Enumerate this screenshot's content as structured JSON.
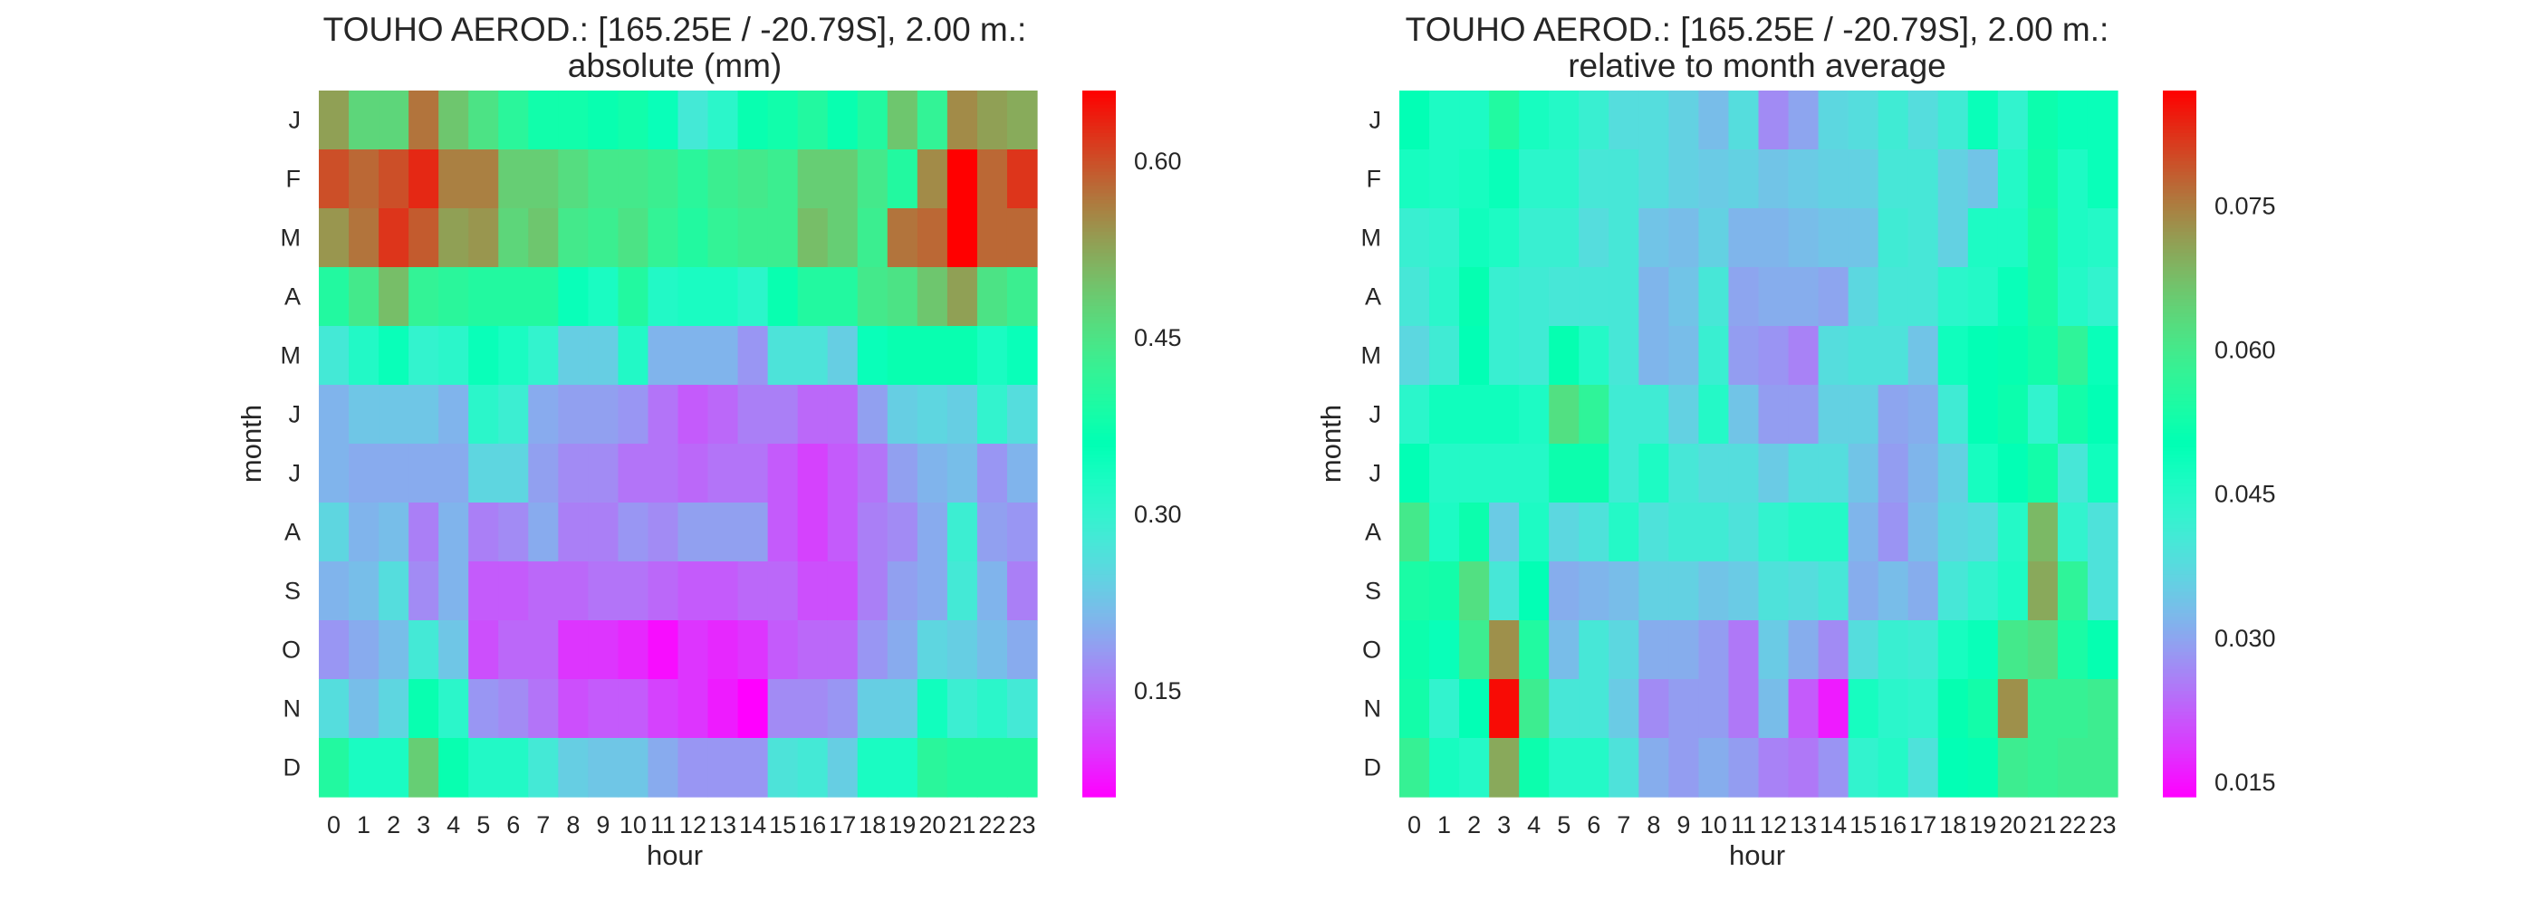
{
  "chart_data": [
    {
      "type": "heatmap",
      "title": "TOUHO AEROD.: [165.25E / -20.79S], 2.00 m.:",
      "subtitle": "absolute (mm)",
      "xlabel": "hour",
      "ylabel": "month",
      "x": [
        "0",
        "1",
        "2",
        "3",
        "4",
        "5",
        "6",
        "7",
        "8",
        "9",
        "10",
        "11",
        "12",
        "13",
        "14",
        "15",
        "16",
        "17",
        "18",
        "19",
        "20",
        "21",
        "22",
        "23"
      ],
      "y": [
        "J",
        "F",
        "M",
        "A",
        "M",
        "J",
        "J",
        "A",
        "S",
        "O",
        "N",
        "D"
      ],
      "colorbar": {
        "min": 0.06,
        "max": 0.66,
        "ticks": [
          0.15,
          0.3,
          0.45,
          0.6
        ],
        "tick_labels": [
          "0.15",
          "0.30",
          "0.45",
          "0.60"
        ],
        "colormap": "rainbow"
      },
      "grid": false,
      "values": [
        [
          0.53,
          0.47,
          0.47,
          0.57,
          0.49,
          0.45,
          0.41,
          0.38,
          0.38,
          0.37,
          0.38,
          0.35,
          0.28,
          0.31,
          0.37,
          0.38,
          0.4,
          0.37,
          0.4,
          0.49,
          0.42,
          0.55,
          0.53,
          0.52
        ],
        [
          0.6,
          0.58,
          0.6,
          0.63,
          0.56,
          0.56,
          0.48,
          0.48,
          0.46,
          0.44,
          0.44,
          0.43,
          0.41,
          0.43,
          0.44,
          0.43,
          0.48,
          0.48,
          0.44,
          0.4,
          0.55,
          0.66,
          0.58,
          0.62
        ],
        [
          0.54,
          0.57,
          0.62,
          0.59,
          0.53,
          0.54,
          0.47,
          0.49,
          0.44,
          0.43,
          0.45,
          0.42,
          0.4,
          0.42,
          0.43,
          0.43,
          0.5,
          0.48,
          0.43,
          0.57,
          0.58,
          0.66,
          0.58,
          0.58
        ],
        [
          0.4,
          0.44,
          0.5,
          0.42,
          0.41,
          0.4,
          0.4,
          0.4,
          0.35,
          0.33,
          0.4,
          0.32,
          0.33,
          0.33,
          0.31,
          0.37,
          0.4,
          0.4,
          0.44,
          0.45,
          0.49,
          0.53,
          0.45,
          0.43
        ],
        [
          0.28,
          0.32,
          0.35,
          0.3,
          0.31,
          0.35,
          0.33,
          0.3,
          0.24,
          0.24,
          0.32,
          0.21,
          0.21,
          0.21,
          0.18,
          0.27,
          0.27,
          0.24,
          0.35,
          0.37,
          0.37,
          0.37,
          0.33,
          0.35
        ],
        [
          0.21,
          0.23,
          0.23,
          0.23,
          0.21,
          0.31,
          0.29,
          0.2,
          0.19,
          0.19,
          0.18,
          0.15,
          0.13,
          0.14,
          0.16,
          0.16,
          0.14,
          0.14,
          0.19,
          0.24,
          0.25,
          0.24,
          0.3,
          0.26
        ],
        [
          0.21,
          0.2,
          0.2,
          0.2,
          0.2,
          0.25,
          0.25,
          0.19,
          0.17,
          0.17,
          0.15,
          0.15,
          0.14,
          0.15,
          0.15,
          0.13,
          0.11,
          0.13,
          0.15,
          0.19,
          0.21,
          0.22,
          0.18,
          0.21
        ],
        [
          0.25,
          0.21,
          0.22,
          0.16,
          0.21,
          0.16,
          0.17,
          0.2,
          0.16,
          0.16,
          0.18,
          0.17,
          0.19,
          0.19,
          0.19,
          0.13,
          0.11,
          0.13,
          0.16,
          0.17,
          0.2,
          0.29,
          0.19,
          0.18
        ],
        [
          0.21,
          0.22,
          0.26,
          0.17,
          0.21,
          0.13,
          0.13,
          0.14,
          0.14,
          0.15,
          0.15,
          0.14,
          0.13,
          0.13,
          0.14,
          0.14,
          0.12,
          0.12,
          0.16,
          0.19,
          0.2,
          0.28,
          0.21,
          0.16
        ],
        [
          0.18,
          0.2,
          0.22,
          0.28,
          0.23,
          0.12,
          0.14,
          0.14,
          0.1,
          0.1,
          0.09,
          0.07,
          0.1,
          0.09,
          0.1,
          0.13,
          0.14,
          0.14,
          0.18,
          0.2,
          0.25,
          0.24,
          0.22,
          0.2
        ],
        [
          0.26,
          0.22,
          0.25,
          0.37,
          0.31,
          0.18,
          0.17,
          0.15,
          0.12,
          0.13,
          0.13,
          0.11,
          0.1,
          0.08,
          0.06,
          0.17,
          0.17,
          0.18,
          0.24,
          0.24,
          0.34,
          0.29,
          0.31,
          0.28
        ],
        [
          0.4,
          0.33,
          0.33,
          0.48,
          0.37,
          0.32,
          0.32,
          0.28,
          0.24,
          0.23,
          0.23,
          0.2,
          0.18,
          0.18,
          0.18,
          0.27,
          0.28,
          0.24,
          0.33,
          0.33,
          0.41,
          0.4,
          0.4,
          0.4
        ]
      ]
    },
    {
      "type": "heatmap",
      "title": "TOUHO AEROD.: [165.25E / -20.79S], 2.00 m.:",
      "subtitle": "relative to month average",
      "xlabel": "hour",
      "ylabel": "month",
      "x": [
        "0",
        "1",
        "2",
        "3",
        "4",
        "5",
        "6",
        "7",
        "8",
        "9",
        "10",
        "11",
        "12",
        "13",
        "14",
        "15",
        "16",
        "17",
        "18",
        "19",
        "20",
        "21",
        "22",
        "23"
      ],
      "y": [
        "J",
        "F",
        "M",
        "A",
        "M",
        "J",
        "J",
        "A",
        "S",
        "O",
        "N",
        "D"
      ],
      "colorbar": {
        "min": 0.0135,
        "max": 0.087,
        "ticks": [
          0.015,
          0.03,
          0.045,
          0.06,
          0.075
        ],
        "tick_labels": [
          "0.015",
          "0.030",
          "0.045",
          "0.060",
          "0.075"
        ],
        "colormap": "rainbow"
      },
      "grid": false,
      "values": [
        [
          0.05,
          0.046,
          0.046,
          0.055,
          0.047,
          0.045,
          0.042,
          0.038,
          0.038,
          0.036,
          0.033,
          0.038,
          0.027,
          0.03,
          0.037,
          0.038,
          0.041,
          0.038,
          0.041,
          0.049,
          0.043,
          0.052,
          0.049,
          0.049
        ],
        [
          0.047,
          0.046,
          0.047,
          0.049,
          0.044,
          0.044,
          0.04,
          0.04,
          0.038,
          0.036,
          0.035,
          0.036,
          0.034,
          0.035,
          0.036,
          0.036,
          0.04,
          0.04,
          0.036,
          0.034,
          0.045,
          0.053,
          0.046,
          0.049
        ],
        [
          0.042,
          0.043,
          0.048,
          0.046,
          0.042,
          0.042,
          0.038,
          0.04,
          0.034,
          0.033,
          0.036,
          0.032,
          0.032,
          0.033,
          0.034,
          0.034,
          0.041,
          0.04,
          0.036,
          0.046,
          0.046,
          0.054,
          0.046,
          0.045
        ],
        [
          0.04,
          0.044,
          0.051,
          0.042,
          0.041,
          0.04,
          0.04,
          0.04,
          0.032,
          0.034,
          0.04,
          0.03,
          0.031,
          0.031,
          0.03,
          0.037,
          0.04,
          0.04,
          0.044,
          0.045,
          0.049,
          0.054,
          0.045,
          0.043
        ],
        [
          0.037,
          0.041,
          0.05,
          0.042,
          0.041,
          0.051,
          0.045,
          0.04,
          0.032,
          0.033,
          0.042,
          0.029,
          0.028,
          0.026,
          0.038,
          0.039,
          0.039,
          0.034,
          0.048,
          0.05,
          0.051,
          0.053,
          0.057,
          0.049
        ],
        [
          0.044,
          0.048,
          0.048,
          0.048,
          0.046,
          0.062,
          0.057,
          0.041,
          0.041,
          0.036,
          0.045,
          0.034,
          0.029,
          0.029,
          0.036,
          0.036,
          0.03,
          0.031,
          0.041,
          0.05,
          0.052,
          0.043,
          0.053,
          0.05
        ],
        [
          0.05,
          0.045,
          0.045,
          0.045,
          0.045,
          0.052,
          0.052,
          0.041,
          0.046,
          0.04,
          0.038,
          0.038,
          0.035,
          0.038,
          0.038,
          0.034,
          0.029,
          0.032,
          0.036,
          0.047,
          0.05,
          0.053,
          0.04,
          0.048
        ],
        [
          0.06,
          0.046,
          0.052,
          0.035,
          0.046,
          0.037,
          0.039,
          0.045,
          0.039,
          0.041,
          0.041,
          0.039,
          0.043,
          0.045,
          0.045,
          0.032,
          0.028,
          0.033,
          0.037,
          0.038,
          0.045,
          0.068,
          0.043,
          0.039
        ],
        [
          0.054,
          0.053,
          0.062,
          0.04,
          0.05,
          0.031,
          0.032,
          0.033,
          0.036,
          0.036,
          0.034,
          0.035,
          0.039,
          0.038,
          0.04,
          0.031,
          0.033,
          0.031,
          0.04,
          0.043,
          0.046,
          0.07,
          0.057,
          0.039
        ],
        [
          0.052,
          0.049,
          0.059,
          0.073,
          0.055,
          0.033,
          0.04,
          0.037,
          0.031,
          0.031,
          0.029,
          0.025,
          0.035,
          0.031,
          0.027,
          0.038,
          0.042,
          0.041,
          0.047,
          0.049,
          0.06,
          0.062,
          0.054,
          0.051
        ],
        [
          0.053,
          0.043,
          0.05,
          0.086,
          0.059,
          0.04,
          0.04,
          0.035,
          0.027,
          0.029,
          0.029,
          0.025,
          0.033,
          0.022,
          0.016,
          0.047,
          0.044,
          0.043,
          0.051,
          0.053,
          0.073,
          0.058,
          0.058,
          0.059
        ],
        [
          0.058,
          0.047,
          0.045,
          0.07,
          0.052,
          0.045,
          0.045,
          0.039,
          0.031,
          0.029,
          0.031,
          0.029,
          0.026,
          0.025,
          0.028,
          0.043,
          0.045,
          0.039,
          0.05,
          0.051,
          0.059,
          0.058,
          0.059,
          0.059
        ]
      ]
    }
  ]
}
